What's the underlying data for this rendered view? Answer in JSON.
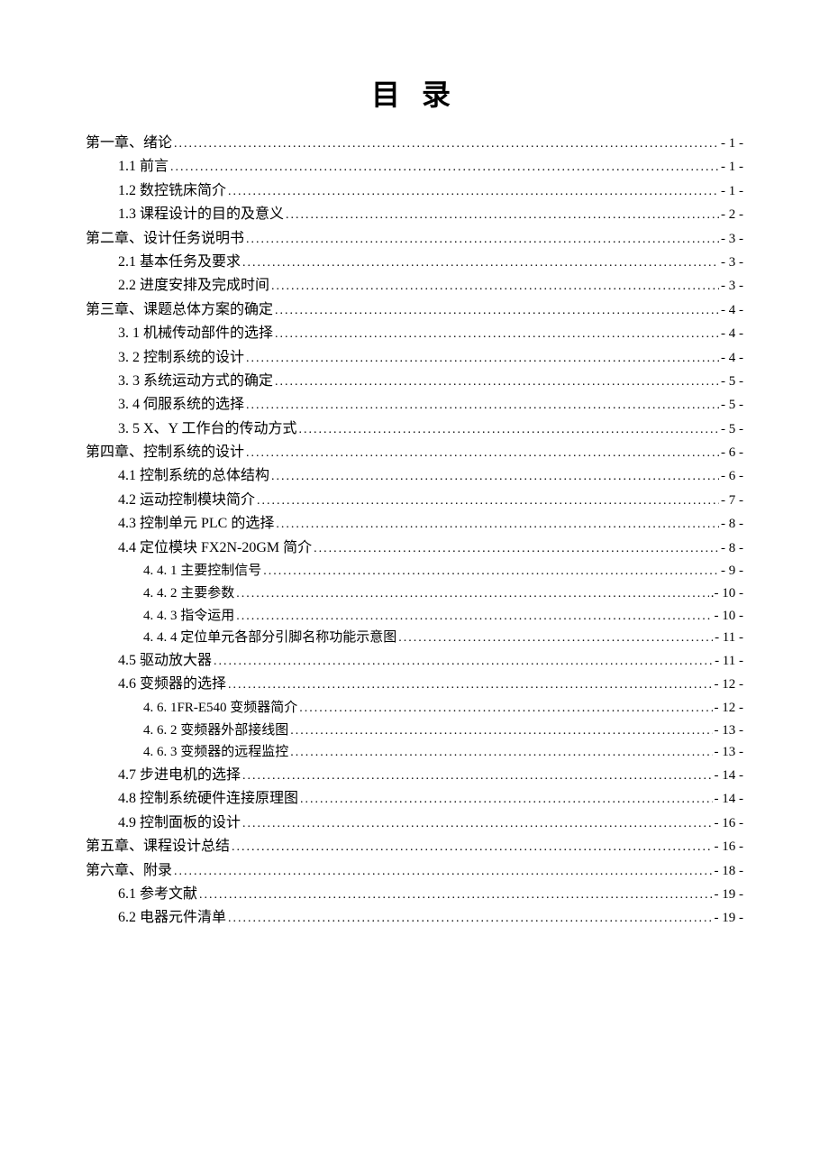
{
  "title": "目 录",
  "colors": {
    "text": "#000000",
    "background": "#ffffff"
  },
  "typography": {
    "title_fontsize": 32,
    "body_fontsize": 16,
    "sub_fontsize": 15,
    "font_family": "SimSun"
  },
  "toc": [
    {
      "level": 0,
      "label": "第一章、绪论",
      "page": "- 1 -"
    },
    {
      "level": 1,
      "label": "1.1 前言",
      "page": "- 1 -"
    },
    {
      "level": 1,
      "label": "1.2 数控铣床简介",
      "page": "- 1 -"
    },
    {
      "level": 1,
      "label": "1.3 课程设计的目的及意义",
      "page": "- 2 -"
    },
    {
      "level": 0,
      "label": "第二章、设计任务说明书",
      "page": "- 3 -"
    },
    {
      "level": 1,
      "label": "2.1 基本任务及要求",
      "page": "- 3 -"
    },
    {
      "level": 1,
      "label": "2.2 进度安排及完成时间",
      "page": "- 3 -"
    },
    {
      "level": 0,
      "label": "第三章、课题总体方案的确定",
      "page": "- 4 -"
    },
    {
      "level": 1,
      "label": "3. 1 机械传动部件的选择",
      "page": "- 4 -"
    },
    {
      "level": 1,
      "label": "3. 2 控制系统的设计",
      "page": "- 4 -"
    },
    {
      "level": 1,
      "label": "3. 3 系统运动方式的确定",
      "page": "- 5 -"
    },
    {
      "level": 1,
      "label": "3. 4 伺服系统的选择",
      "page": "- 5 -"
    },
    {
      "level": 1,
      "label": "3. 5 X、Y 工作台的传动方式",
      "page": "- 5 -"
    },
    {
      "level": 0,
      "label": "第四章、控制系统的设计",
      "page": "- 6 -"
    },
    {
      "level": 1,
      "label": "4.1 控制系统的总体结构",
      "page": "- 6 -"
    },
    {
      "level": 1,
      "label": "4.2 运动控制模块简介",
      "page": "- 7 -"
    },
    {
      "level": 1,
      "label": "4.3 控制单元 PLC 的选择",
      "page": "- 8 -"
    },
    {
      "level": 1,
      "label": "4.4 定位模块 FX2N-20GM 简介",
      "page": "- 8 -"
    },
    {
      "level": 2,
      "label": "4. 4. 1 主要控制信号",
      "page": "- 9 -"
    },
    {
      "level": 2,
      "label": "4. 4. 2 主要参数",
      "page": ".- 10 -"
    },
    {
      "level": 2,
      "label": "4. 4. 3 指令运用",
      "page": "- 10 -"
    },
    {
      "level": 2,
      "label": "4. 4. 4 定位单元各部分引脚名称功能示意图",
      "page": "- 11 -"
    },
    {
      "level": 1,
      "label": "4.5 驱动放大器",
      "page": "- 11 -"
    },
    {
      "level": 1,
      "label": "4.6 变频器的选择",
      "page": "- 12 -"
    },
    {
      "level": 2,
      "label": "4. 6. 1FR-E540 变频器简介",
      "page": "- 12 -"
    },
    {
      "level": 2,
      "label": "4. 6. 2 变频器外部接线图",
      "page": "- 13 -"
    },
    {
      "level": 2,
      "label": "4. 6. 3 变频器的远程监控",
      "page": "- 13 -"
    },
    {
      "level": 1,
      "label": "4.7 步进电机的选择",
      "page": "- 14 -"
    },
    {
      "level": 1,
      "label": "4.8 控制系统硬件连接原理图",
      "page": "- 14 -"
    },
    {
      "level": 1,
      "label": "4.9 控制面板的设计",
      "page": "- 16 -"
    },
    {
      "level": 0,
      "label": "第五章、课程设计总结",
      "page": "- 16 -"
    },
    {
      "level": 0,
      "label": "第六章、附录",
      "page": "- 18 -"
    },
    {
      "level": 1,
      "label": "6.1 参考文献",
      "page": "- 19 -"
    },
    {
      "level": 1,
      "label": "6.2 电器元件清单",
      "page": "- 19 -"
    }
  ]
}
